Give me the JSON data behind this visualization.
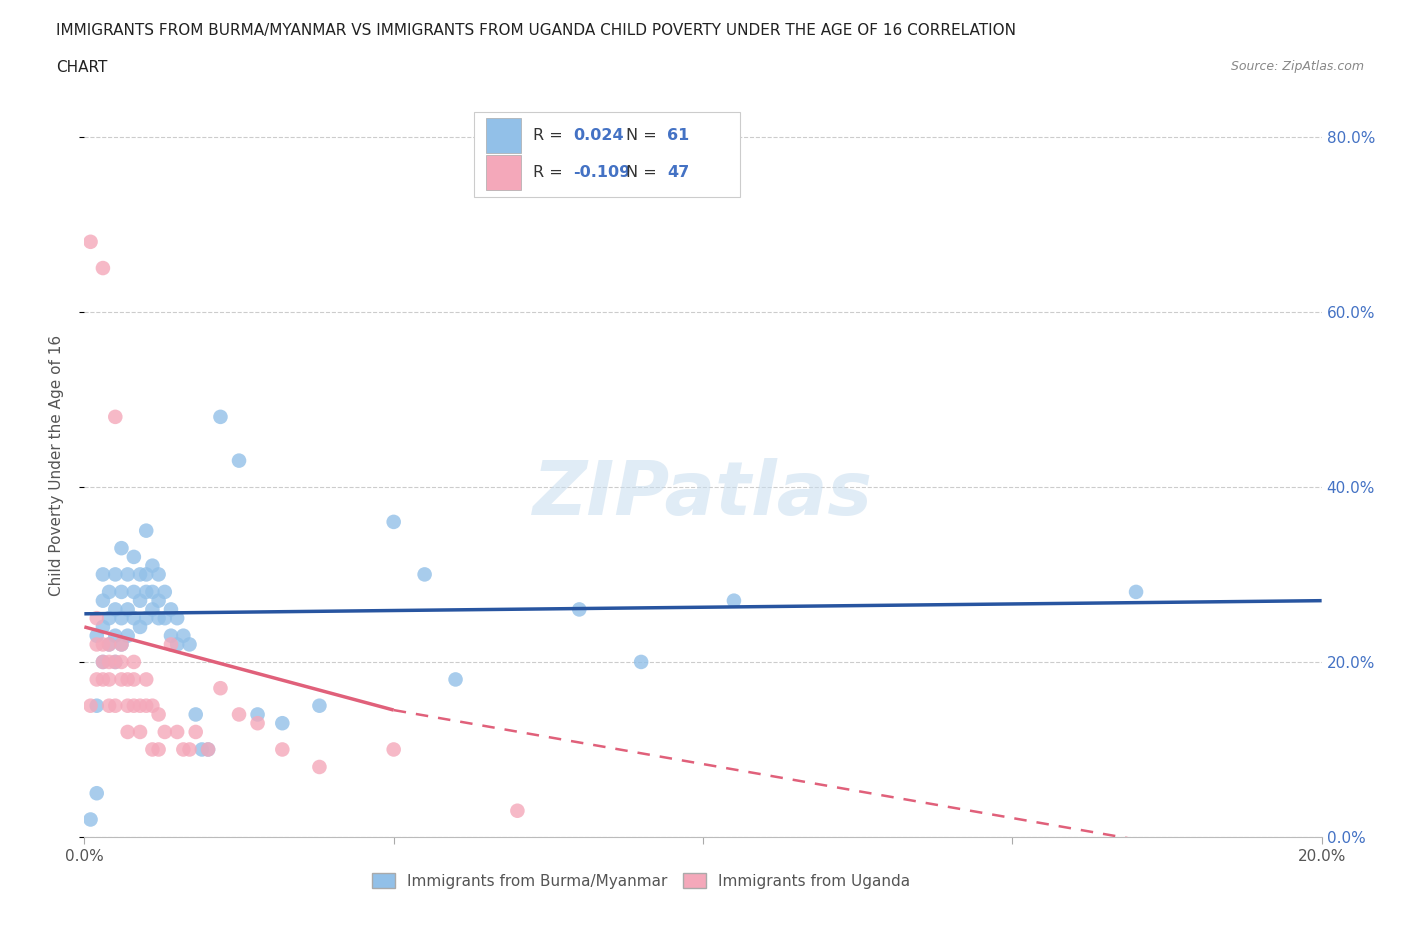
{
  "title_line1": "IMMIGRANTS FROM BURMA/MYANMAR VS IMMIGRANTS FROM UGANDA CHILD POVERTY UNDER THE AGE OF 16 CORRELATION",
  "title_line2": "CHART",
  "source": "Source: ZipAtlas.com",
  "ylabel": "Child Poverty Under the Age of 16",
  "xlim": [
    0.0,
    0.2
  ],
  "ylim": [
    0.0,
    0.85
  ],
  "yticks": [
    0.0,
    0.2,
    0.4,
    0.6,
    0.8
  ],
  "ytick_labels": [
    "0.0%",
    "20.0%",
    "40.0%",
    "60.0%",
    "80.0%"
  ],
  "xticks": [
    0.0,
    0.05,
    0.1,
    0.15,
    0.2
  ],
  "xtick_labels": [
    "0.0%",
    "",
    "",
    "",
    "20.0%"
  ],
  "color_burma": "#92C0E8",
  "color_uganda": "#F4A8BA",
  "color_burma_line": "#2855A0",
  "color_uganda_line": "#E0607A",
  "R_burma": 0.024,
  "N_burma": 61,
  "R_uganda": -0.109,
  "N_uganda": 47,
  "watermark": "ZIPatlas",
  "burma_x": [
    0.001,
    0.002,
    0.002,
    0.002,
    0.003,
    0.003,
    0.003,
    0.003,
    0.004,
    0.004,
    0.004,
    0.005,
    0.005,
    0.005,
    0.005,
    0.006,
    0.006,
    0.006,
    0.006,
    0.007,
    0.007,
    0.007,
    0.008,
    0.008,
    0.008,
    0.009,
    0.009,
    0.009,
    0.01,
    0.01,
    0.01,
    0.01,
    0.011,
    0.011,
    0.011,
    0.012,
    0.012,
    0.012,
    0.013,
    0.013,
    0.014,
    0.014,
    0.015,
    0.015,
    0.016,
    0.017,
    0.018,
    0.019,
    0.02,
    0.022,
    0.025,
    0.028,
    0.032,
    0.038,
    0.05,
    0.055,
    0.06,
    0.09,
    0.105,
    0.17,
    0.08
  ],
  "burma_y": [
    0.02,
    0.05,
    0.15,
    0.23,
    0.2,
    0.24,
    0.27,
    0.3,
    0.22,
    0.25,
    0.28,
    0.2,
    0.23,
    0.26,
    0.3,
    0.22,
    0.25,
    0.28,
    0.33,
    0.23,
    0.26,
    0.3,
    0.25,
    0.28,
    0.32,
    0.24,
    0.27,
    0.3,
    0.25,
    0.28,
    0.3,
    0.35,
    0.26,
    0.28,
    0.31,
    0.25,
    0.27,
    0.3,
    0.25,
    0.28,
    0.23,
    0.26,
    0.22,
    0.25,
    0.23,
    0.22,
    0.14,
    0.1,
    0.1,
    0.48,
    0.43,
    0.14,
    0.13,
    0.15,
    0.36,
    0.3,
    0.18,
    0.2,
    0.27,
    0.28,
    0.26
  ],
  "uganda_x": [
    0.001,
    0.001,
    0.002,
    0.002,
    0.002,
    0.003,
    0.003,
    0.003,
    0.003,
    0.004,
    0.004,
    0.004,
    0.004,
    0.005,
    0.005,
    0.005,
    0.006,
    0.006,
    0.006,
    0.007,
    0.007,
    0.007,
    0.008,
    0.008,
    0.008,
    0.009,
    0.009,
    0.01,
    0.01,
    0.011,
    0.011,
    0.012,
    0.012,
    0.013,
    0.014,
    0.015,
    0.016,
    0.017,
    0.018,
    0.02,
    0.022,
    0.025,
    0.028,
    0.032,
    0.038,
    0.05,
    0.07
  ],
  "uganda_y": [
    0.68,
    0.15,
    0.18,
    0.22,
    0.25,
    0.22,
    0.2,
    0.65,
    0.18,
    0.18,
    0.2,
    0.22,
    0.15,
    0.2,
    0.48,
    0.15,
    0.18,
    0.2,
    0.22,
    0.18,
    0.15,
    0.12,
    0.18,
    0.15,
    0.2,
    0.15,
    0.12,
    0.18,
    0.15,
    0.15,
    0.1,
    0.14,
    0.1,
    0.12,
    0.22,
    0.12,
    0.1,
    0.1,
    0.12,
    0.1,
    0.17,
    0.14,
    0.13,
    0.1,
    0.08,
    0.1,
    0.03
  ]
}
